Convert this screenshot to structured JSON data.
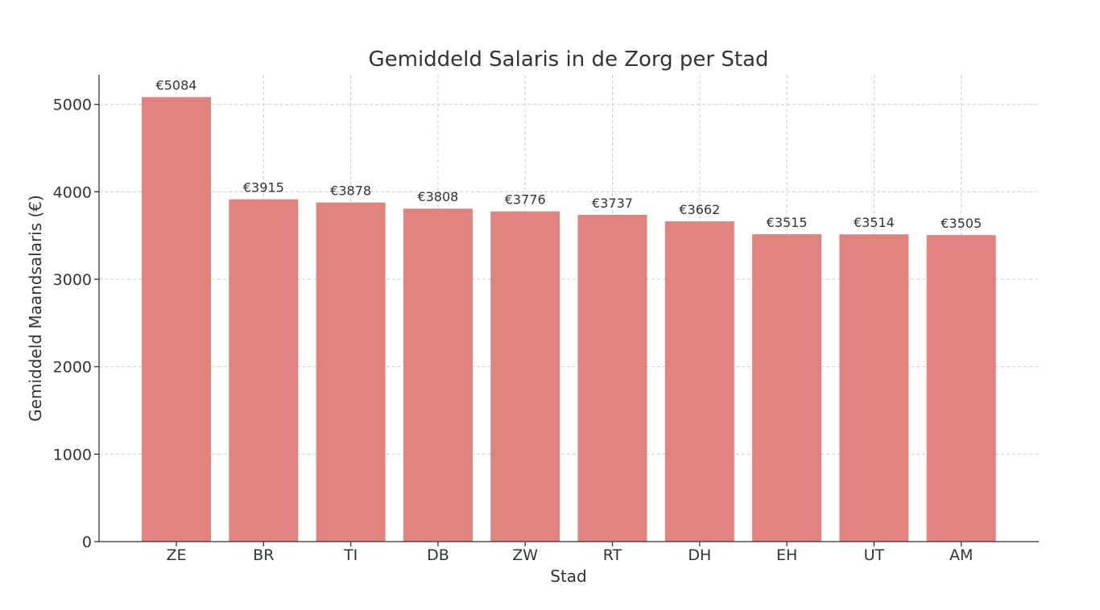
{
  "chart_data": {
    "type": "bar",
    "title": "Gemiddeld Salaris in de Zorg per Stad",
    "xlabel": "Stad",
    "ylabel": "Gemiddeld Maandsalaris (€)",
    "categories": [
      "ZE",
      "BR",
      "TI",
      "DB",
      "ZW",
      "RT",
      "DH",
      "EH",
      "UT",
      "AM"
    ],
    "values": [
      5084,
      3915,
      3878,
      3808,
      3776,
      3737,
      3662,
      3515,
      3514,
      3505
    ],
    "data_labels": [
      "€5084",
      "€3915",
      "€3878",
      "€3808",
      "€3776",
      "€3737",
      "€3662",
      "€3515",
      "€3514",
      "€3505"
    ],
    "yticks": [
      0,
      1000,
      2000,
      3000,
      4000,
      5000
    ],
    "ylim": [
      0,
      5338
    ],
    "grid": true,
    "bar_color": "#e0837f"
  }
}
